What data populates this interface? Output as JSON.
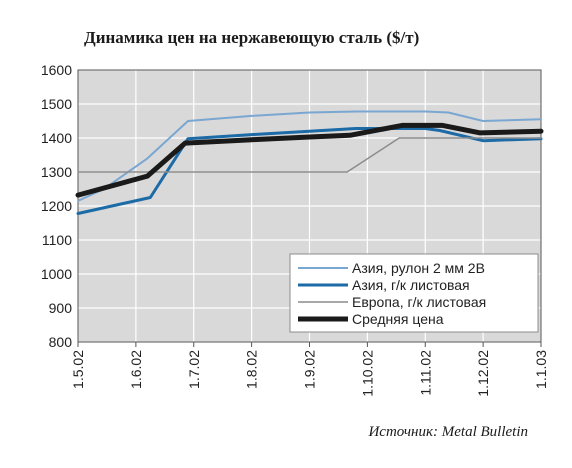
{
  "chart_data": {
    "type": "line",
    "title": "Динамика цен на нержавеющую сталь ($/т)",
    "source": "Источник: Metal Bulletin",
    "x": [
      "1.5.02",
      "1.6.02",
      "1.7.02",
      "1.8.02",
      "1.9.02",
      "1.10.02",
      "1.11.02",
      "1.12.02",
      "1.1.03"
    ],
    "ylim": [
      800,
      1600
    ],
    "yticks": [
      "800",
      "900",
      "1000",
      "1100",
      "1200",
      "1300",
      "1400",
      "1500",
      "1600"
    ],
    "grid": true,
    "legend_position": "bottom-right",
    "series": [
      {
        "name": "Азия, рулон 2 мм 2В",
        "color": "#7aa6d2",
        "width": 2,
        "points": [
          [
            0,
            1215
          ],
          [
            0.45,
            1250
          ],
          [
            1.2,
            1340
          ],
          [
            1.9,
            1450
          ],
          [
            3,
            1465
          ],
          [
            4,
            1475
          ],
          [
            4.8,
            1478
          ],
          [
            6,
            1478
          ],
          [
            6.4,
            1475
          ],
          [
            7,
            1450
          ],
          [
            8,
            1455
          ]
        ]
      },
      {
        "name": "Азия, г/к листовая",
        "color": "#1c6aa6",
        "width": 3,
        "points": [
          [
            0,
            1178
          ],
          [
            1.25,
            1225
          ],
          [
            1.9,
            1398
          ],
          [
            3,
            1410
          ],
          [
            4,
            1420
          ],
          [
            4.8,
            1428
          ],
          [
            6,
            1428
          ],
          [
            6.25,
            1422
          ],
          [
            7,
            1392
          ],
          [
            8,
            1398
          ]
        ]
      },
      {
        "name": "Европа, г/к листовая",
        "color": "#8c8c8c",
        "width": 1.5,
        "points": [
          [
            0,
            1300
          ],
          [
            4.65,
            1300
          ],
          [
            5.55,
            1400
          ],
          [
            8,
            1400
          ]
        ]
      },
      {
        "name": "Средняя цена",
        "color": "#1a1a1a",
        "width": 5,
        "points": [
          [
            0,
            1232
          ],
          [
            1.2,
            1288
          ],
          [
            1.85,
            1385
          ],
          [
            3,
            1395
          ],
          [
            4,
            1403
          ],
          [
            4.7,
            1408
          ],
          [
            5.6,
            1437
          ],
          [
            6.3,
            1437
          ],
          [
            6.95,
            1415
          ],
          [
            8,
            1420
          ]
        ]
      }
    ]
  }
}
